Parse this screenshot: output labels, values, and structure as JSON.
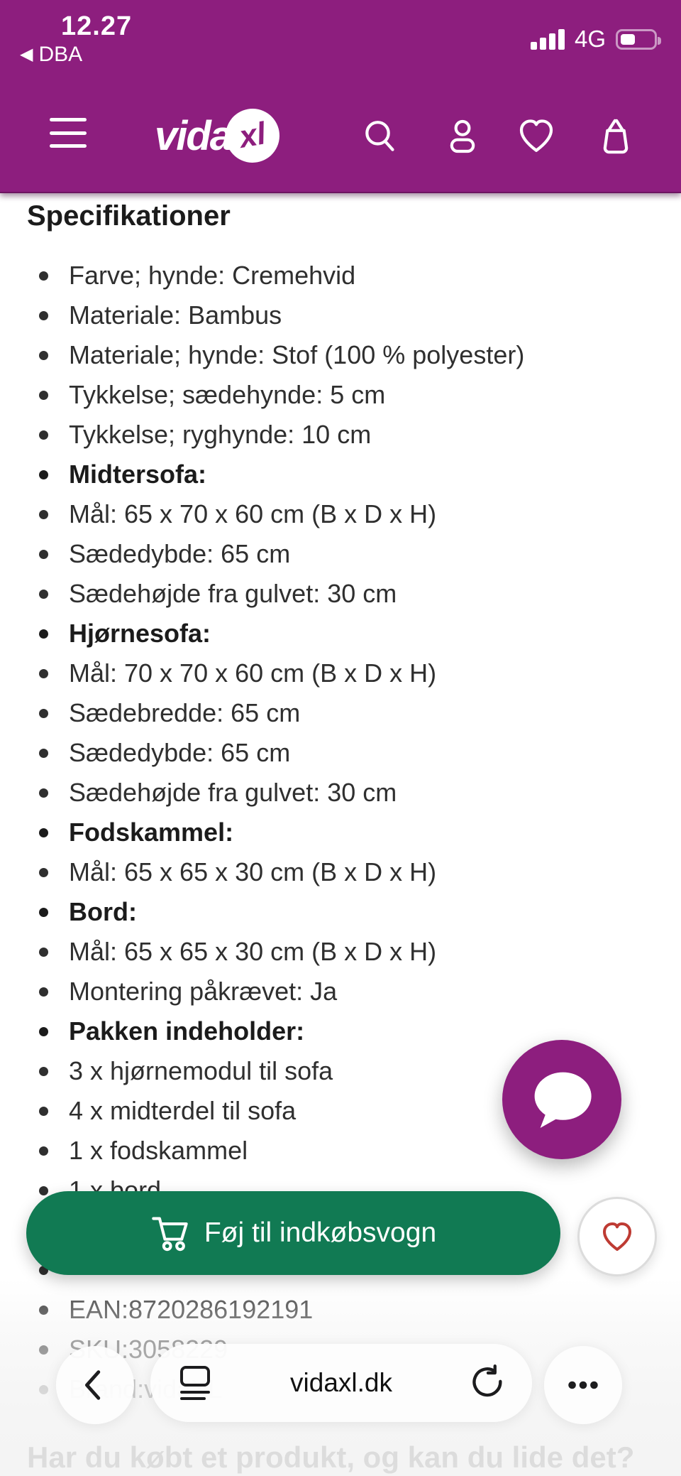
{
  "status_bar": {
    "time": "12.27",
    "back_app": "DBA",
    "network": "4G",
    "signal_bars": 4,
    "battery_fill_ratio": 0.38
  },
  "header": {
    "logo_text": "vida",
    "logo_badge": "xl",
    "icons": [
      "menu",
      "search",
      "account",
      "wishlist",
      "cart"
    ]
  },
  "specifications": {
    "title": "Specifikationer",
    "items": [
      {
        "text": "Farve; hynde: Cremehvid"
      },
      {
        "text": "Materiale: Bambus"
      },
      {
        "text": "Materiale; hynde: Stof (100 % polyester)"
      },
      {
        "text": "Tykkelse; sædehynde: 5 cm"
      },
      {
        "text": "Tykkelse; ryghynde: 10 cm"
      },
      {
        "text": "Midtersofa:",
        "bold": true
      },
      {
        "text": "Mål: 65 x 70 x 60 cm (B x D x H)"
      },
      {
        "text": "Sædedybde: 65 cm"
      },
      {
        "text": "Sædehøjde fra gulvet: 30 cm"
      },
      {
        "text": "Hjørnesofa:",
        "bold": true
      },
      {
        "text": "Mål: 70 x 70 x 60 cm (B x D x H)"
      },
      {
        "text": "Sædebredde: 65 cm"
      },
      {
        "text": "Sædedybde: 65 cm"
      },
      {
        "text": "Sædehøjde fra gulvet: 30 cm"
      },
      {
        "text": "Fodskammel:",
        "bold": true
      },
      {
        "text": "Mål: 65 x 65 x 30 cm (B x D x H)"
      },
      {
        "text": "Bord:",
        "bold": true
      },
      {
        "text": "Mål: 65 x 65 x 30 cm (B x D x H)"
      },
      {
        "text": "Montering påkrævet: Ja"
      },
      {
        "text": "Pakken indeholder:",
        "bold": true
      },
      {
        "text": "3 x hjørnemodul til sofa"
      },
      {
        "text": "4 x midterdel til sofa"
      },
      {
        "text": "1 x fodskammel"
      },
      {
        "text": "1 x bord"
      },
      {
        "text": ""
      },
      {
        "text": ""
      },
      {
        "text": "EAN:8720286192191",
        "cls": "meta1"
      },
      {
        "text": "SKU:3058229",
        "cls": "meta2"
      },
      {
        "text": "Brand:vidaXL",
        "cls": "meta3"
      }
    ]
  },
  "cart_bar": {
    "button_label": "Føj til indkøbsvogn"
  },
  "browser_bar": {
    "url": "vidaxl.dk"
  },
  "footer": {
    "question": "Har du købt et produkt, og kan du lide det?"
  },
  "colors": {
    "brand_purple": "#8d1e7e",
    "cta_green": "#117a53",
    "heart_red": "#be3b33"
  }
}
